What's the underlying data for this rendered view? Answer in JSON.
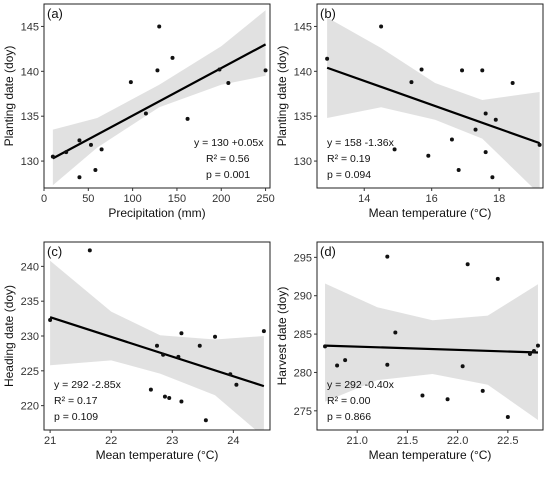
{
  "chart_data": [
    {
      "type": "scatter",
      "panel_label": "(a)",
      "xlabel": "Precipitation (mm)",
      "ylabel": "Planting date (doy)",
      "xlim": [
        0,
        255
      ],
      "ylim": [
        127,
        147.5
      ],
      "xticks": [
        0,
        50,
        100,
        150,
        200,
        250
      ],
      "yticks": [
        130,
        135,
        140,
        145
      ],
      "equation": "y = 130 +0.05x",
      "r2": "R² = 0.56",
      "p": "p = 0.001",
      "stats_position": "bottom-right",
      "grid": false,
      "fit": {
        "x": [
          10,
          250
        ],
        "y": [
          130.3,
          143.0
        ]
      },
      "band": {
        "x": [
          10,
          60,
          130,
          200,
          250
        ],
        "lower": [
          127.3,
          131.5,
          136.0,
          138.5,
          139.5
        ],
        "upper": [
          133.5,
          134.8,
          138.5,
          142.8,
          146.8
        ]
      },
      "points": [
        {
          "x": 10,
          "y": 130.5
        },
        {
          "x": 25,
          "y": 131.0
        },
        {
          "x": 40,
          "y": 128.2
        },
        {
          "x": 40,
          "y": 132.3
        },
        {
          "x": 53,
          "y": 131.8
        },
        {
          "x": 58,
          "y": 129.0
        },
        {
          "x": 65,
          "y": 131.3
        },
        {
          "x": 98,
          "y": 138.8
        },
        {
          "x": 115,
          "y": 135.3
        },
        {
          "x": 128,
          "y": 140.1
        },
        {
          "x": 130,
          "y": 145.0
        },
        {
          "x": 145,
          "y": 141.5
        },
        {
          "x": 162,
          "y": 134.7
        },
        {
          "x": 198,
          "y": 140.2
        },
        {
          "x": 208,
          "y": 138.7
        },
        {
          "x": 250,
          "y": 140.1
        }
      ]
    },
    {
      "type": "scatter",
      "panel_label": "(b)",
      "xlabel": "Mean temperature (°C)",
      "ylabel": "Planting date (doy)",
      "xlim": [
        12.6,
        19.3
      ],
      "ylim": [
        127,
        147.5
      ],
      "xticks": [
        14,
        16,
        18
      ],
      "yticks": [
        130,
        135,
        140,
        145
      ],
      "equation": "y = 158 -1.36x",
      "r2": "R² = 0.19",
      "p": "p = 0.094",
      "stats_position": "bottom-left",
      "grid": false,
      "fit": {
        "x": [
          12.9,
          19.2
        ],
        "y": [
          140.4,
          132.0
        ]
      },
      "band": {
        "x": [
          12.9,
          14.5,
          16.1,
          17.5,
          19.2
        ],
        "lower": [
          134.8,
          136.0,
          134.6,
          132.5,
          126.3
        ],
        "upper": [
          146.0,
          142.6,
          138.7,
          136.8,
          137.7
        ]
      },
      "points": [
        {
          "x": 12.9,
          "y": 141.4
        },
        {
          "x": 14.5,
          "y": 145.0
        },
        {
          "x": 14.9,
          "y": 131.3
        },
        {
          "x": 15.4,
          "y": 138.8
        },
        {
          "x": 15.7,
          "y": 140.2
        },
        {
          "x": 15.9,
          "y": 130.6
        },
        {
          "x": 16.6,
          "y": 132.4
        },
        {
          "x": 16.8,
          "y": 129.0
        },
        {
          "x": 16.9,
          "y": 140.1
        },
        {
          "x": 17.3,
          "y": 133.5
        },
        {
          "x": 17.5,
          "y": 140.1
        },
        {
          "x": 17.6,
          "y": 135.3
        },
        {
          "x": 17.6,
          "y": 131.0
        },
        {
          "x": 17.8,
          "y": 128.2
        },
        {
          "x": 17.9,
          "y": 134.6
        },
        {
          "x": 18.4,
          "y": 138.7
        },
        {
          "x": 19.2,
          "y": 131.8
        }
      ]
    },
    {
      "type": "scatter",
      "panel_label": "(c)",
      "xlabel": "Mean temperature (°C)",
      "ylabel": "Heading date (doy)",
      "xlim": [
        20.9,
        24.6
      ],
      "ylim": [
        216.5,
        243.5
      ],
      "xticks": [
        21,
        22,
        23,
        24
      ],
      "yticks": [
        220,
        225,
        230,
        235,
        240
      ],
      "equation": "y = 292 -2.85x",
      "r2": "R² = 0.17",
      "p": "p = 0.109",
      "stats_position": "bottom-left",
      "grid": false,
      "fit": {
        "x": [
          21.0,
          24.5
        ],
        "y": [
          232.7,
          222.8
        ]
      },
      "band": {
        "x": [
          21.0,
          22.0,
          22.8,
          23.7,
          24.5
        ],
        "lower": [
          225.8,
          226.5,
          224.6,
          221.5,
          215.5
        ],
        "upper": [
          240.8,
          233.5,
          230.1,
          229.5,
          230.0
        ]
      },
      "points": [
        {
          "x": 21.0,
          "y": 232.3
        },
        {
          "x": 21.65,
          "y": 242.3
        },
        {
          "x": 22.65,
          "y": 222.3
        },
        {
          "x": 22.75,
          "y": 228.6
        },
        {
          "x": 22.85,
          "y": 227.3
        },
        {
          "x": 22.88,
          "y": 221.3
        },
        {
          "x": 22.95,
          "y": 221.1
        },
        {
          "x": 23.1,
          "y": 227.0
        },
        {
          "x": 23.15,
          "y": 230.4
        },
        {
          "x": 23.15,
          "y": 220.6
        },
        {
          "x": 23.45,
          "y": 228.6
        },
        {
          "x": 23.55,
          "y": 217.9
        },
        {
          "x": 23.7,
          "y": 229.9
        },
        {
          "x": 23.95,
          "y": 224.5
        },
        {
          "x": 24.05,
          "y": 223.0
        },
        {
          "x": 24.5,
          "y": 230.7
        }
      ]
    },
    {
      "type": "scatter",
      "panel_label": "(d)",
      "xlabel": "Mean temperature (°C)",
      "ylabel": "Harvest date (doy)",
      "xlim": [
        20.6,
        22.85
      ],
      "ylim": [
        272.5,
        297
      ],
      "xticks": [
        21.0,
        21.5,
        22.0,
        22.5
      ],
      "yticks": [
        275,
        280,
        285,
        290,
        295
      ],
      "equation": "y = 292 -0.40x",
      "r2": "R² = 0.00",
      "p": "p = 0.866",
      "stats_position": "bottom-left",
      "grid": false,
      "fit": {
        "x": [
          20.68,
          22.8
        ],
        "y": [
          283.5,
          282.6
        ]
      },
      "band": {
        "x": [
          20.68,
          21.2,
          21.75,
          22.3,
          22.8
        ],
        "lower": [
          276.2,
          279.0,
          279.8,
          278.4,
          273.8
        ],
        "upper": [
          291.6,
          288.5,
          286.8,
          287.4,
          291.5
        ]
      },
      "points": [
        {
          "x": 20.68,
          "y": 283.4
        },
        {
          "x": 20.8,
          "y": 280.9
        },
        {
          "x": 20.88,
          "y": 281.6
        },
        {
          "x": 21.3,
          "y": 295.1
        },
        {
          "x": 21.3,
          "y": 281.0
        },
        {
          "x": 21.38,
          "y": 285.2
        },
        {
          "x": 21.65,
          "y": 277.0
        },
        {
          "x": 21.9,
          "y": 276.5
        },
        {
          "x": 22.05,
          "y": 280.8
        },
        {
          "x": 22.1,
          "y": 294.1
        },
        {
          "x": 22.25,
          "y": 277.6
        },
        {
          "x": 22.4,
          "y": 292.2
        },
        {
          "x": 22.5,
          "y": 274.2
        },
        {
          "x": 22.72,
          "y": 282.4
        },
        {
          "x": 22.76,
          "y": 282.8
        },
        {
          "x": 22.8,
          "y": 283.5
        }
      ]
    }
  ]
}
